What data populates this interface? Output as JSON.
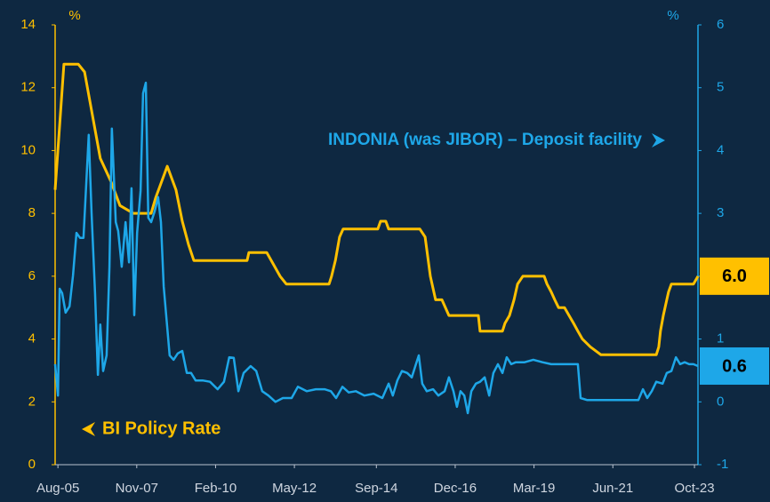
{
  "chart_data": {
    "type": "line",
    "left_unit": "%",
    "right_unit": "%",
    "annotations": [
      "INDONIA (was JIBOR) – Deposit facility",
      "BI Policy Rate"
    ],
    "xlim": [
      2005.5,
      2023.85
    ],
    "xticks": [
      {
        "value": 2005.58,
        "label": "Aug-05"
      },
      {
        "value": 2007.83,
        "label": "Nov-07"
      },
      {
        "value": 2010.08,
        "label": "Feb-10"
      },
      {
        "value": 2012.33,
        "label": "May-12"
      },
      {
        "value": 2014.67,
        "label": "Sep-14"
      },
      {
        "value": 2016.92,
        "label": "Dec-16"
      },
      {
        "value": 2019.17,
        "label": "Mar-19"
      },
      {
        "value": 2021.42,
        "label": "Jun-21"
      },
      {
        "value": 2023.75,
        "label": "Oct-23"
      }
    ],
    "ylim": [
      0,
      14
    ],
    "yticks": [
      0,
      2,
      4,
      6,
      8,
      10,
      12,
      14
    ],
    "y2lim": [
      -1,
      6
    ],
    "y2ticks": [
      -1,
      0,
      1,
      2,
      3,
      4,
      5,
      6
    ],
    "series": [
      {
        "name": "BI Policy Rate",
        "color": "#ffc000",
        "axis": "y",
        "end_label": "6.0",
        "x": [
          2005.5,
          2005.75,
          2006.16,
          2006.34,
          2006.79,
          2007.1,
          2007.35,
          2007.73,
          2008.24,
          2008.37,
          2008.62,
          2008.7,
          2008.95,
          2009.13,
          2009.31,
          2009.46,
          2010.98,
          2011.03,
          2011.54,
          2011.67,
          2011.92,
          2012.1,
          2013.32,
          2013.39,
          2013.5,
          2013.62,
          2013.72,
          2014.71,
          2014.79,
          2014.94,
          2015.02,
          2015.91,
          2016.06,
          2016.21,
          2016.36,
          2016.54,
          2016.74,
          2017.58,
          2017.63,
          2018.27,
          2018.34,
          2018.47,
          2018.6,
          2018.7,
          2018.85,
          2019.46,
          2019.54,
          2019.66,
          2019.76,
          2019.87,
          2020.04,
          2020.17,
          2020.3,
          2020.42,
          2020.55,
          2020.78,
          2021.08,
          2022.66,
          2022.73,
          2022.78,
          2022.86,
          2022.96,
          2023.01,
          2023.09,
          2023.72,
          2023.85
        ],
        "values": [
          8.75,
          12.75,
          12.75,
          12.5,
          9.75,
          9.0,
          8.25,
          8.0,
          8.0,
          8.5,
          9.25,
          9.5,
          8.75,
          7.75,
          7.0,
          6.5,
          6.5,
          6.75,
          6.75,
          6.5,
          6.0,
          5.75,
          5.75,
          6.0,
          6.5,
          7.25,
          7.5,
          7.5,
          7.75,
          7.75,
          7.5,
          7.5,
          7.25,
          6.0,
          5.25,
          5.25,
          4.75,
          4.75,
          4.25,
          4.25,
          4.5,
          4.75,
          5.25,
          5.75,
          6.0,
          6.0,
          5.75,
          5.5,
          5.25,
          5.0,
          5.0,
          4.75,
          4.5,
          4.25,
          4.0,
          3.75,
          3.5,
          3.5,
          3.75,
          4.25,
          4.75,
          5.25,
          5.5,
          5.75,
          5.75,
          6.0
        ]
      },
      {
        "name": "INDONIA (was JIBOR) – Deposit facility",
        "color": "#1ea7e8",
        "axis": "y2",
        "end_label": "0.6",
        "x": [
          2005.5,
          2005.58,
          2005.63,
          2005.7,
          2005.8,
          2005.91,
          2006.01,
          2006.11,
          2006.21,
          2006.31,
          2006.39,
          2006.46,
          2006.54,
          2006.64,
          2006.72,
          2006.79,
          2006.87,
          2006.97,
          2007.05,
          2007.12,
          2007.23,
          2007.3,
          2007.4,
          2007.51,
          2007.61,
          2007.68,
          2007.76,
          2007.84,
          2007.94,
          2008.01,
          2008.09,
          2008.16,
          2008.24,
          2008.34,
          2008.44,
          2008.52,
          2008.6,
          2008.67,
          2008.77,
          2008.88,
          2009.0,
          2009.13,
          2009.26,
          2009.38,
          2009.51,
          2009.71,
          2009.92,
          2010.14,
          2010.32,
          2010.47,
          2010.6,
          2010.73,
          2010.88,
          2011.08,
          2011.24,
          2011.41,
          2011.59,
          2011.79,
          2012.0,
          2012.25,
          2012.43,
          2012.68,
          2012.94,
          2013.19,
          2013.37,
          2013.52,
          2013.7,
          2013.88,
          2014.08,
          2014.33,
          2014.59,
          2014.84,
          2015.02,
          2015.14,
          2015.27,
          2015.4,
          2015.55,
          2015.68,
          2015.8,
          2015.88,
          2015.98,
          2016.11,
          2016.29,
          2016.44,
          2016.62,
          2016.74,
          2016.87,
          2016.97,
          2017.07,
          2017.18,
          2017.28,
          2017.38,
          2017.51,
          2017.63,
          2017.76,
          2017.89,
          2018.01,
          2018.14,
          2018.27,
          2018.39,
          2018.52,
          2018.65,
          2018.9,
          2019.15,
          2019.41,
          2019.66,
          2019.92,
          2020.17,
          2020.42,
          2020.5,
          2020.68,
          2020.93,
          2021.19,
          2021.44,
          2021.69,
          2021.95,
          2022.15,
          2022.28,
          2022.4,
          2022.53,
          2022.66,
          2022.84,
          2022.96,
          2023.09,
          2023.22,
          2023.34,
          2023.47,
          2023.6,
          2023.72,
          2023.85
        ],
        "values": [
          0.6,
          0.1,
          1.8,
          1.73,
          1.42,
          1.52,
          2.01,
          2.69,
          2.61,
          2.61,
          3.5,
          4.25,
          3.0,
          1.73,
          0.43,
          1.23,
          0.49,
          0.74,
          2.15,
          4.35,
          2.86,
          2.72,
          2.15,
          2.86,
          2.22,
          3.4,
          1.38,
          2.69,
          3.36,
          4.91,
          5.08,
          2.93,
          2.86,
          3.03,
          3.26,
          2.86,
          1.84,
          1.38,
          0.74,
          0.67,
          0.77,
          0.81,
          0.46,
          0.46,
          0.34,
          0.34,
          0.32,
          0.2,
          0.32,
          0.71,
          0.7,
          0.17,
          0.46,
          0.57,
          0.49,
          0.17,
          0.1,
          0.0,
          0.06,
          0.06,
          0.24,
          0.17,
          0.2,
          0.2,
          0.17,
          0.06,
          0.24,
          0.15,
          0.17,
          0.1,
          0.13,
          0.06,
          0.29,
          0.1,
          0.34,
          0.49,
          0.46,
          0.39,
          0.6,
          0.74,
          0.29,
          0.17,
          0.2,
          0.1,
          0.17,
          0.39,
          0.17,
          -0.08,
          0.17,
          0.1,
          -0.18,
          0.17,
          0.29,
          0.32,
          0.39,
          0.1,
          0.46,
          0.6,
          0.46,
          0.71,
          0.6,
          0.63,
          0.63,
          0.67,
          0.63,
          0.6,
          0.6,
          0.6,
          0.6,
          0.06,
          0.03,
          0.03,
          0.03,
          0.03,
          0.03,
          0.03,
          0.03,
          0.2,
          0.06,
          0.17,
          0.32,
          0.29,
          0.46,
          0.49,
          0.71,
          0.6,
          0.63,
          0.6,
          0.6,
          0.57
        ]
      }
    ]
  }
}
